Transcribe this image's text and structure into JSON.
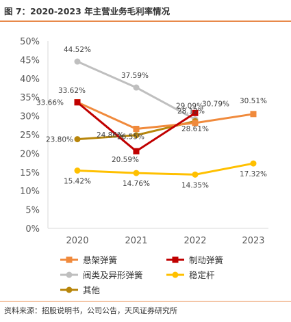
{
  "header": {
    "title": "图 7：2020-2023 年主营业务毛利率情况"
  },
  "footer": {
    "source": "资料来源：招股说明书，公司公告，天风证券研究所"
  },
  "colors": {
    "rule": "#e8894a"
  },
  "chart_data": {
    "type": "line",
    "categories": [
      "2020",
      "2021",
      "2022",
      "2023"
    ],
    "ylim": [
      0,
      50
    ],
    "yticks": [
      0,
      5,
      10,
      15,
      20,
      25,
      30,
      35,
      40,
      45,
      50
    ],
    "ytick_labels": [
      "0%",
      "5%",
      "10%",
      "15%",
      "20%",
      "25%",
      "30%",
      "35%",
      "40%",
      "45%",
      "50%"
    ],
    "grid": false,
    "legend_position": "bottom",
    "series": [
      {
        "name": "悬架弹簧",
        "color": "#f08a3c",
        "marker": "square",
        "values": [
          33.66,
          26.55,
          28.12,
          30.51
        ],
        "labels": [
          "33.66%",
          "26.55%",
          "28.12%",
          "30.51%"
        ]
      },
      {
        "name": "制动弹簧",
        "color": "#c00000",
        "marker": "square",
        "values": [
          33.62,
          20.59,
          30.79,
          null
        ],
        "labels": [
          "33.62%",
          "20.59%",
          "30.79%",
          null
        ]
      },
      {
        "name": "阀类及异形弹簧",
        "color": "#bfbfbf",
        "marker": "circle",
        "values": [
          44.52,
          37.59,
          29.09,
          null
        ],
        "labels": [
          "44.52%",
          "37.59%",
          "29.09%",
          null
        ]
      },
      {
        "name": "稳定杆",
        "color": "#ffc000",
        "marker": "circle",
        "values": [
          15.42,
          14.76,
          14.35,
          17.32
        ],
        "labels": [
          "15.42%",
          "14.76%",
          "14.35%",
          "17.32%"
        ]
      },
      {
        "name": "其他",
        "color": "#b8860b",
        "marker": "circle",
        "values": [
          23.8,
          24.86,
          28.61,
          null
        ],
        "labels": [
          "23.80%",
          "24.86%",
          "28.61%",
          null
        ]
      }
    ]
  }
}
